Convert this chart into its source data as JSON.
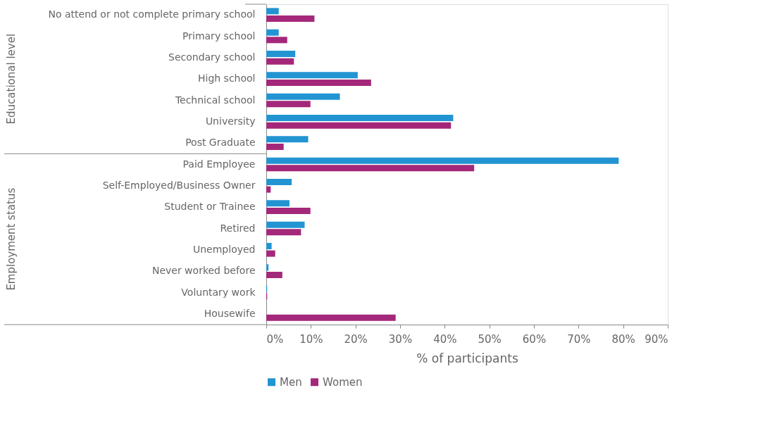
{
  "chart_data": {
    "type": "bar",
    "orientation": "horizontal",
    "xlabel": "% of participants",
    "categories": [
      "No attend or not complete primary school",
      "Primary school",
      "Secondary school",
      "High school",
      "Technical school",
      "University",
      "Post Graduate",
      "Paid Employee",
      "Self-Employed/Business Owner",
      "Student or Trainee",
      "Retired",
      "Unemployed",
      "Never worked before",
      "Voluntary work",
      "Housewife"
    ],
    "series": [
      {
        "name": "Men",
        "color": "#2394d2",
        "values": [
          2.8,
          2.8,
          6.5,
          20.5,
          16.5,
          41.9,
          9.4,
          79.0,
          5.7,
          5.2,
          8.6,
          1.2,
          0.5,
          0.2,
          0
        ]
      },
      {
        "name": "Women",
        "color": "#a4287a",
        "values": [
          10.8,
          4.7,
          6.2,
          23.5,
          9.9,
          41.4,
          3.9,
          46.6,
          1.0,
          9.9,
          7.8,
          2.0,
          3.6,
          0.2,
          29.0
        ]
      }
    ],
    "xlim": [
      0,
      90
    ],
    "xticks": [
      {
        "value": 0,
        "label": "0%"
      },
      {
        "value": 10,
        "label": "10%"
      },
      {
        "value": 20,
        "label": "20%"
      },
      {
        "value": 30,
        "label": "30%"
      },
      {
        "value": 40,
        "label": "40%"
      },
      {
        "value": 50,
        "label": "50%"
      },
      {
        "value": 60,
        "label": "60%"
      },
      {
        "value": 70,
        "label": "70%"
      },
      {
        "value": 80,
        "label": "80%"
      },
      {
        "value": 90,
        "label": "90%"
      }
    ],
    "annotations": [
      "Educational level",
      "Employment status"
    ],
    "grid": false,
    "legend": "bottom"
  }
}
